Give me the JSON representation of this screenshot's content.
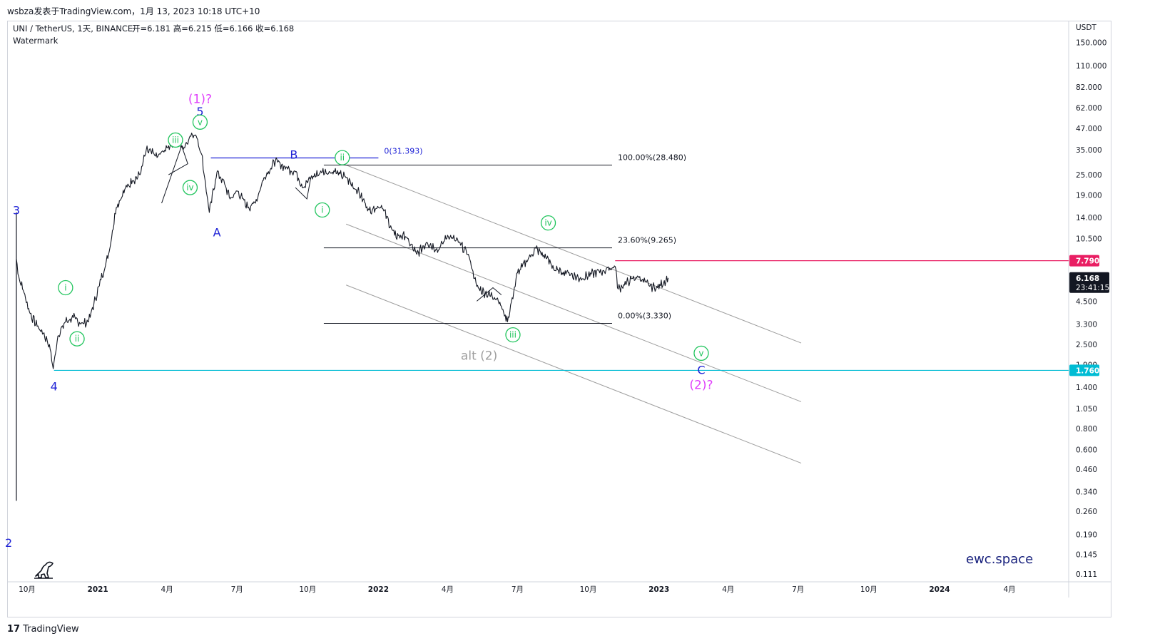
{
  "header": {
    "published": "wsbza发表于TradingView.com，1月 13, 2023 10:18 UTC+10"
  },
  "legend": {
    "symbol": "UNI / TetherUS, 1天, BINANCE",
    "ohlc": "开=6.181  高=6.215  低=6.166  收=6.168",
    "watermark": "Watermark"
  },
  "footer": {
    "brand": "TradingView",
    "logo_mark": "17"
  },
  "site_label": "ewc.space",
  "chart_data": {
    "type": "line",
    "scale": "log",
    "y_axis_unit": "USDT",
    "y_ticks": [
      150,
      110,
      82,
      62,
      47,
      35,
      25,
      19,
      14,
      10.5,
      7.79,
      4.5,
      3.3,
      2.5,
      1.9,
      1.4,
      1.05,
      0.8,
      0.6,
      0.46,
      0.34,
      0.26,
      0.19,
      0.145,
      0.111
    ],
    "y_tick_labels": [
      "150.000",
      "110.000",
      "82.000",
      "62.000",
      "47.000",
      "35.000",
      "25.000",
      "19.000",
      "14.000",
      "10.500",
      "7.790",
      "4.500",
      "3.300",
      "2.500",
      "1.900",
      "1.400",
      "1.050",
      "0.800",
      "0.600",
      "0.460",
      "0.340",
      "0.260",
      "0.190",
      "0.145",
      "0.111"
    ],
    "x_ticks": [
      "10月",
      "2021",
      "4月",
      "7月",
      "10月",
      "2022",
      "4月",
      "7月",
      "10月",
      "2023",
      "4月",
      "7月",
      "10月",
      "2024",
      "4月"
    ],
    "x_tick_dates": [
      "2020-10",
      "2021-01",
      "2021-04",
      "2021-07",
      "2021-10",
      "2022-01",
      "2022-04",
      "2022-07",
      "2022-10",
      "2023-01",
      "2023-04",
      "2023-07",
      "2023-10",
      "2024-01",
      "2024-04"
    ],
    "x_range": [
      "2020-09-05",
      "2024-06-17"
    ],
    "y_range": [
      0.1,
      200
    ],
    "current_price": {
      "value": 6.168,
      "label": "6.168",
      "countdown": "23:41:15",
      "color": "#131722"
    },
    "price_tags": [
      {
        "value": 7.79,
        "label": "7.790",
        "color": "#e91e63"
      },
      {
        "value": 1.76,
        "label": "1.760",
        "color": "#00bcd4"
      }
    ],
    "price_series": {
      "name": "UNI / TetherUS",
      "dates": [
        "2020-09-17",
        "2020-09-19",
        "2020-09-26",
        "2020-10-05",
        "2020-10-14",
        "2020-10-22",
        "2020-10-30",
        "2020-11-04",
        "2020-11-10",
        "2020-11-20",
        "2020-11-30",
        "2020-12-10",
        "2020-12-20",
        "2021-01-05",
        "2021-01-15",
        "2021-01-25",
        "2021-02-05",
        "2021-02-15",
        "2021-02-25",
        "2021-03-05",
        "2021-03-20",
        "2021-04-01",
        "2021-04-12",
        "2021-04-22",
        "2021-05-03",
        "2021-05-10",
        "2021-05-16",
        "2021-05-20",
        "2021-05-26",
        "2021-06-05",
        "2021-06-15",
        "2021-06-22",
        "2021-07-02",
        "2021-07-15",
        "2021-07-25",
        "2021-08-05",
        "2021-08-20",
        "2021-09-05",
        "2021-09-15",
        "2021-09-25",
        "2021-10-05",
        "2021-10-20",
        "2021-11-05",
        "2021-11-20",
        "2021-12-05",
        "2021-12-20",
        "2022-01-05",
        "2022-01-22",
        "2022-02-05",
        "2022-02-20",
        "2022-03-05",
        "2022-03-20",
        "2022-04-01",
        "2022-04-15",
        "2022-04-28",
        "2022-05-09",
        "2022-05-20",
        "2022-06-05",
        "2022-06-18",
        "2022-07-01",
        "2022-07-15",
        "2022-07-25",
        "2022-08-08",
        "2022-08-20",
        "2022-09-05",
        "2022-09-20",
        "2022-10-05",
        "2022-10-20",
        "2022-11-05",
        "2022-11-09",
        "2022-11-20",
        "2022-12-05",
        "2022-12-20",
        "2022-12-30",
        "2023-01-13"
      ],
      "values": [
        8.0,
        6.5,
        5.2,
        3.8,
        3.2,
        2.9,
        2.5,
        1.8,
        2.8,
        3.4,
        3.6,
        3.3,
        3.4,
        6.0,
        8.5,
        16.0,
        20.5,
        23.0,
        25.0,
        35.0,
        32.0,
        36.0,
        40.0,
        35.0,
        44.0,
        41.0,
        33.0,
        24.0,
        15.0,
        26.0,
        22.0,
        18.0,
        20.0,
        16.0,
        17.0,
        24.0,
        30.0,
        27.0,
        26.0,
        21.0,
        24.0,
        26.0,
        26.0,
        24.0,
        20.0,
        15.5,
        16.5,
        11.0,
        10.8,
        8.5,
        10.0,
        9.0,
        11.0,
        10.0,
        8.5,
        5.5,
        5.0,
        4.7,
        3.4,
        6.6,
        8.0,
        9.2,
        8.0,
        6.8,
        6.6,
        6.1,
        6.5,
        6.8,
        7.2,
        5.3,
        5.8,
        6.3,
        5.5,
        5.4,
        6.168
      ]
    },
    "annotations": [
      {
        "text": "(1)?",
        "date": "2021-05-14",
        "price": 70,
        "color": "#e040fb",
        "style": "plain"
      },
      {
        "text": "5",
        "date": "2021-05-14",
        "price": 59,
        "color": "#1e22d6",
        "style": "plain"
      },
      {
        "text": "v",
        "date": "2021-05-14",
        "price": 51,
        "color": "#22c55e",
        "style": "circle"
      },
      {
        "text": "iii",
        "date": "2021-04-12",
        "price": 40,
        "color": "#22c55e",
        "style": "circle"
      },
      {
        "text": "iv",
        "date": "2021-05-01",
        "price": 21,
        "color": "#22c55e",
        "style": "circle"
      },
      {
        "text": "3",
        "date": "2020-09-17",
        "price": 15.5,
        "color": "#1e22d6",
        "style": "plain"
      },
      {
        "text": "i",
        "date": "2020-11-20",
        "price": 5.4,
        "color": "#22c55e",
        "style": "circle"
      },
      {
        "text": "ii",
        "date": "2020-12-05",
        "price": 2.7,
        "color": "#22c55e",
        "style": "circle"
      },
      {
        "text": "4",
        "date": "2020-11-05",
        "price": 1.42,
        "color": "#1e22d6",
        "style": "plain"
      },
      {
        "text": "2",
        "date": "2020-09-07",
        "price": 0.17,
        "color": "#1e22d6",
        "style": "plain"
      },
      {
        "text": "A",
        "date": "2021-06-05",
        "price": 11.5,
        "color": "#1e22d6",
        "style": "plain"
      },
      {
        "text": "B",
        "date": "2021-09-13",
        "price": 33,
        "color": "#1e22d6",
        "style": "plain"
      },
      {
        "text": "ii",
        "date": "2021-11-15",
        "price": 31.5,
        "color": "#22c55e",
        "style": "circle"
      },
      {
        "text": "i",
        "date": "2021-10-20",
        "price": 15.5,
        "color": "#22c55e",
        "style": "circle"
      },
      {
        "text": "iv",
        "date": "2022-08-10",
        "price": 13.0,
        "color": "#22c55e",
        "style": "circle"
      },
      {
        "text": "iii",
        "date": "2022-06-25",
        "price": 2.85,
        "color": "#22c55e",
        "style": "circle"
      },
      {
        "text": "alt (2)",
        "date": "2022-05-12",
        "price": 2.15,
        "color": "#9e9e9e",
        "style": "plain"
      },
      {
        "text": "v",
        "date": "2023-02-25",
        "price": 2.22,
        "color": "#22c55e",
        "style": "circle"
      },
      {
        "text": "C",
        "date": "2023-02-25",
        "price": 1.78,
        "color": "#1e22d6",
        "style": "plain"
      },
      {
        "text": "(2)?",
        "date": "2023-02-25",
        "price": 1.45,
        "color": "#e040fb",
        "style": "plain"
      }
    ],
    "fib_levels": [
      {
        "label": "100.00%(28.480)",
        "price": 28.48
      },
      {
        "label": "23.60%(9.265)",
        "price": 9.265
      },
      {
        "label": "0.00%(3.330)",
        "price": 3.33
      }
    ],
    "hlines": [
      {
        "label": "0(31.393)",
        "price": 31.393,
        "color": "#1e22d6",
        "from": "2021-05-28",
        "to": "2022-01-01"
      },
      {
        "label": "",
        "price": 7.79,
        "color": "#e91e63",
        "from": "2022-11-05",
        "to": "2024-06-17"
      },
      {
        "label": "",
        "price": 1.76,
        "color": "#00bcd4",
        "from": "2020-11-05",
        "to": "2024-06-17"
      }
    ]
  }
}
